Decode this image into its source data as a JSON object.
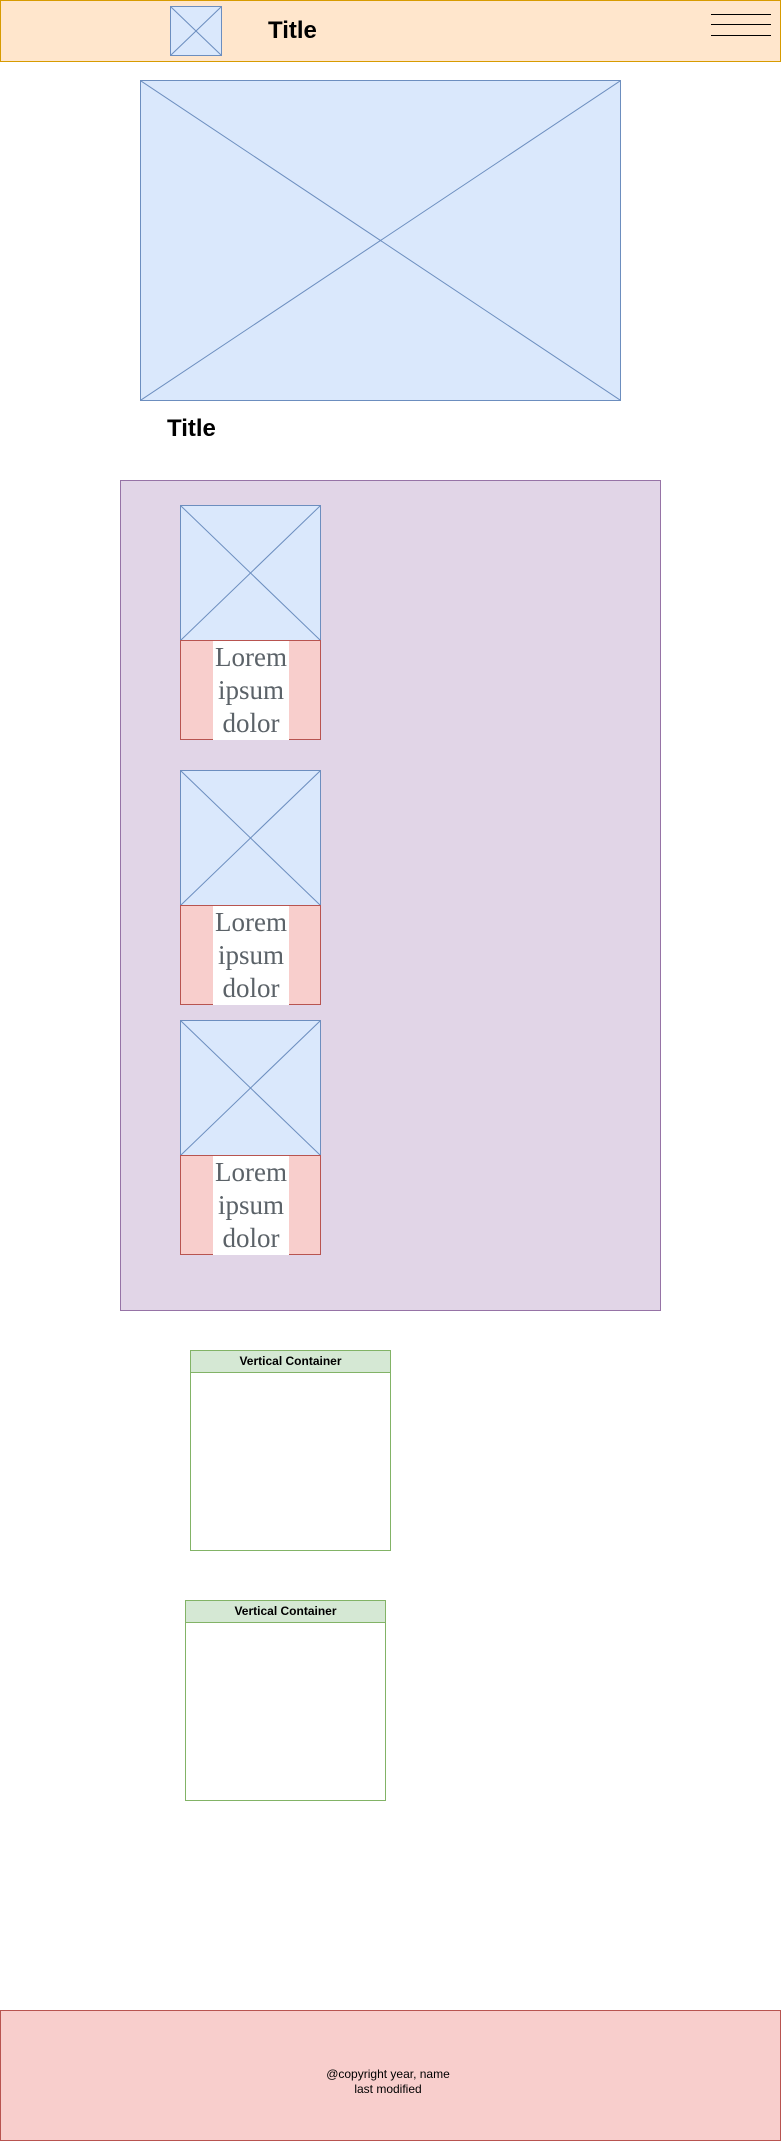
{
  "header": {
    "title": "Title"
  },
  "hero": {},
  "section": {
    "title": "Title"
  },
  "cards": [
    {
      "lines": [
        "Lorem",
        "ipsum",
        "dolor"
      ]
    },
    {
      "lines": [
        "Lorem",
        "ipsum",
        "dolor"
      ]
    },
    {
      "lines": [
        "Lorem",
        "ipsum",
        "dolor"
      ]
    }
  ],
  "containers": [
    {
      "title": "Vertical Container"
    },
    {
      "title": "Vertical Container"
    }
  ],
  "footer": {
    "copyright": "@copyright year, name",
    "modified": "last modified"
  },
  "colors": {
    "header_fill": "#ffe6cc",
    "header_stroke": "#d79b00",
    "image_fill": "#dae8fc",
    "image_stroke": "#6c8ebf",
    "panel_fill": "#e1d5e7",
    "panel_stroke": "#9673a6",
    "text_fill": "#f8cecc",
    "text_stroke": "#b85450",
    "container_header": "#d5e8d4",
    "container_stroke": "#82b366"
  }
}
